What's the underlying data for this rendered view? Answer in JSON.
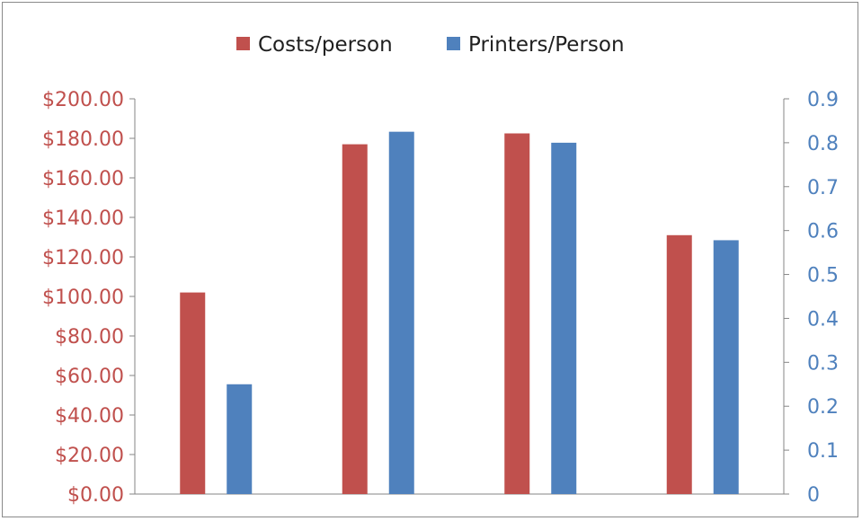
{
  "chart_data": {
    "type": "bar",
    "title": "",
    "xlabel": "",
    "categories": [
      "",
      "",
      "",
      ""
    ],
    "series": [
      {
        "name": "Costs/person",
        "axis": "left",
        "color": "#c0504d",
        "values": [
          102,
          177,
          182.5,
          131
        ]
      },
      {
        "name": "Printers/Person",
        "axis": "right",
        "color": "#4f81bd",
        "values": [
          0.25,
          0.825,
          0.8,
          0.578
        ]
      }
    ],
    "y_left": {
      "range": [
        0,
        200
      ],
      "ticks": [
        "$0.00",
        "$20.00",
        "$40.00",
        "$60.00",
        "$80.00",
        "$100.00",
        "$120.00",
        "$140.00",
        "$160.00",
        "$180.00",
        "$200.00"
      ],
      "color": "#c0504d"
    },
    "y_right": {
      "range": [
        0,
        0.9
      ],
      "ticks": [
        "0",
        "0.1",
        "0.2",
        "0.3",
        "0.4",
        "0.5",
        "0.6",
        "0.7",
        "0.8",
        "0.9"
      ],
      "color": "#4f81bd"
    },
    "legend": {
      "position": "top"
    },
    "grid": false
  }
}
